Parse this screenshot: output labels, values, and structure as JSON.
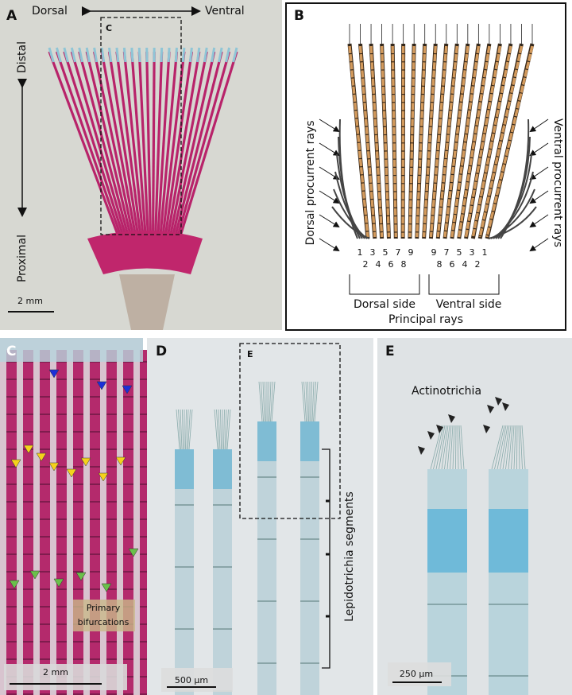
{
  "panels": {
    "A": {
      "label": "A",
      "dorsal": "Dorsal",
      "ventral": "Ventral",
      "distal": "Distal",
      "proximal": "Proximal",
      "inset": "C",
      "scale": "2 mm"
    },
    "B": {
      "label": "B",
      "dorsal_procurrent": "Dorsal procurrent rays",
      "ventral_procurrent": "Ventral procurrent rays",
      "dorsal_top": [
        1,
        3,
        5,
        7,
        9
      ],
      "dorsal_bottom": [
        2,
        4,
        6,
        8
      ],
      "ventral_top": [
        9,
        7,
        5,
        3,
        1
      ],
      "ventral_bottom": [
        8,
        6,
        4,
        2
      ],
      "dorsal_side": "Dorsal side",
      "ventral_side": "Ventral side",
      "principal": "Principal rays"
    },
    "C": {
      "label": "C",
      "annotation": [
        "Primary",
        "bifurcations"
      ],
      "scale": "2 mm"
    },
    "D": {
      "label": "D",
      "inset": "E",
      "segments": "Lepidotrichia segments",
      "scale": "500 µm"
    },
    "E": {
      "label": "E",
      "annotation": "Actinotrichia",
      "scale": "250 µm"
    }
  }
}
